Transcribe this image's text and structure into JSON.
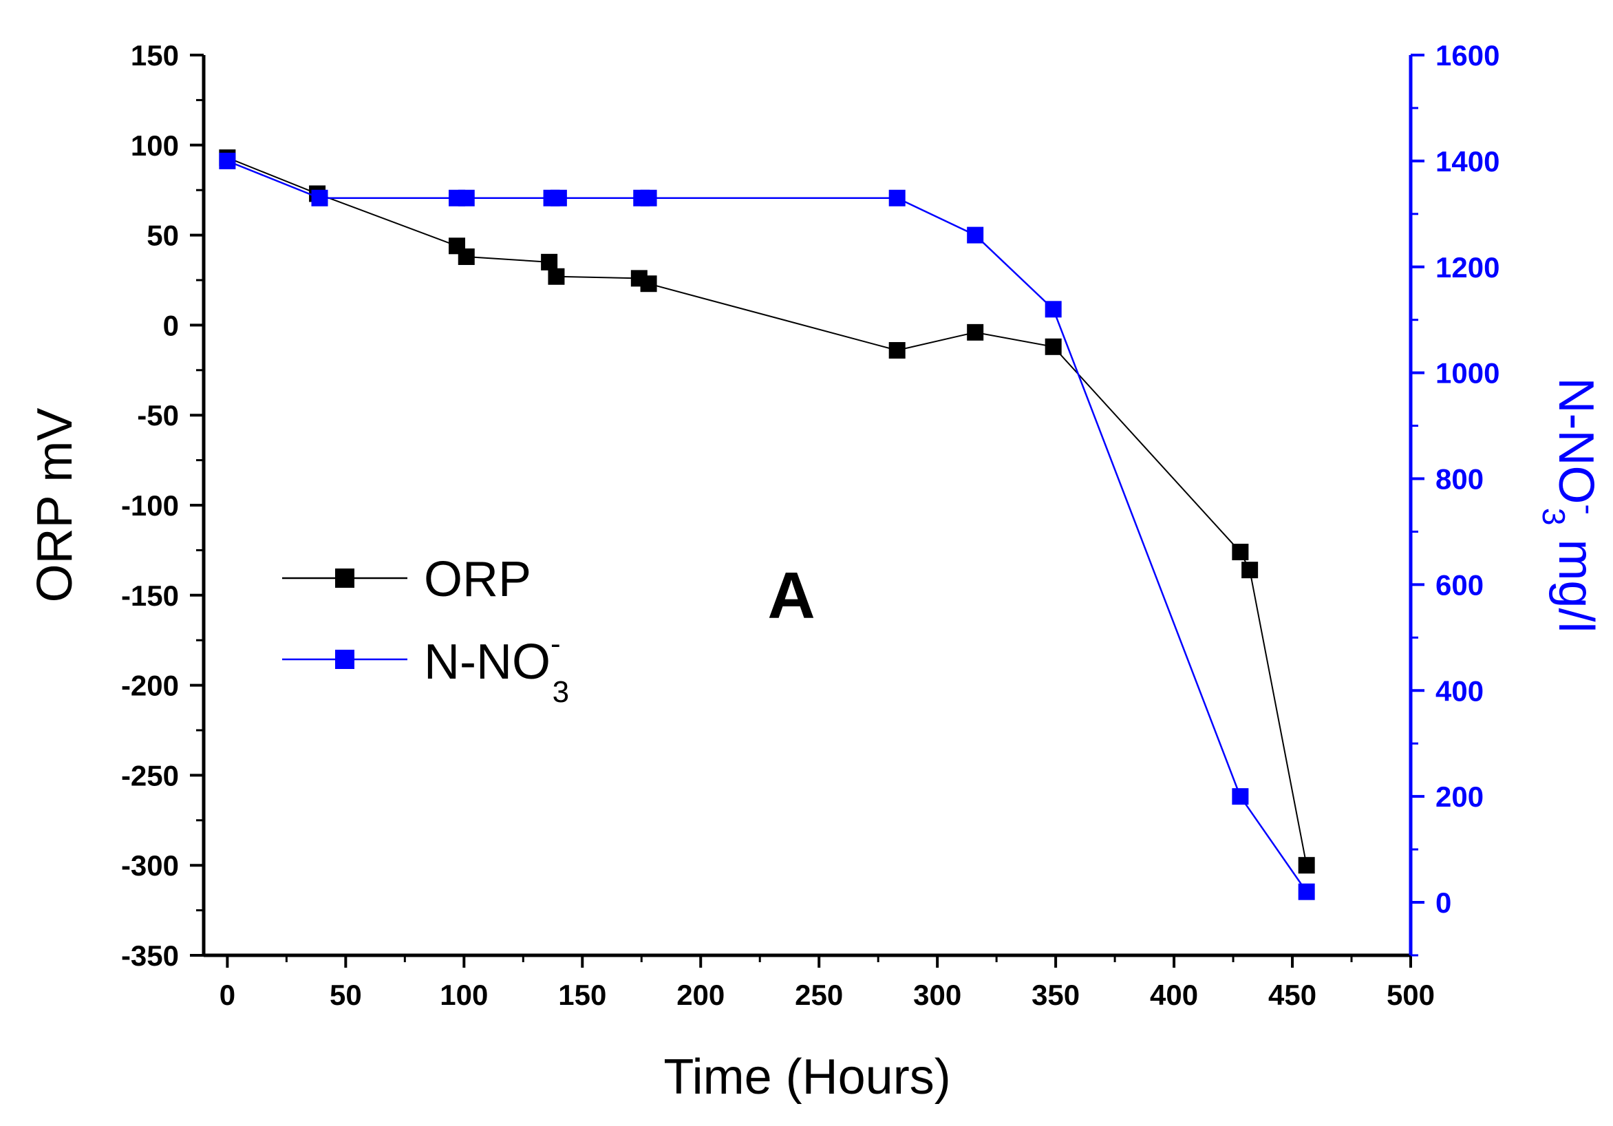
{
  "chart_data": {
    "type": "line",
    "panel_label": "A",
    "xlabel": "Time (Hours)",
    "ylabel_left": "ORP mV",
    "ylabel_right": {
      "main": "N-NO",
      "superscript": "-",
      "subscript": "3",
      "suffix": " mg/l"
    },
    "xlim": [
      -10,
      500
    ],
    "ylim_left": [
      -350,
      150
    ],
    "ylim_right": [
      -100,
      1600
    ],
    "x_ticks": [
      0,
      50,
      100,
      150,
      200,
      250,
      300,
      350,
      400,
      450,
      500
    ],
    "y_ticks_left": [
      150,
      100,
      50,
      0,
      -50,
      -100,
      -150,
      -200,
      -250,
      -300,
      -350
    ],
    "y_ticks_right": [
      1600,
      1400,
      1200,
      1000,
      800,
      600,
      400,
      200,
      0
    ],
    "x_tick_labels": [
      "0",
      "50",
      "100",
      "150",
      "200",
      "250",
      "300",
      "350",
      "400",
      "450",
      "500"
    ],
    "y_tick_labels_left": [
      "150",
      "100",
      "50",
      "0",
      "-50",
      "-100",
      "-150",
      "-200",
      "-250",
      "-300",
      "-350"
    ],
    "y_tick_labels_right": [
      "1600",
      "1400",
      "1200",
      "1000",
      "800",
      "600",
      "400",
      "200",
      "0"
    ],
    "legend_position": "middle-left",
    "series": [
      {
        "name": "ORP",
        "axis": "left",
        "color": "#000000",
        "x": [
          0,
          38,
          97,
          101,
          136,
          139,
          174,
          178,
          283,
          316,
          349,
          428,
          432,
          456
        ],
        "y": [
          93,
          73,
          44,
          38,
          35,
          27,
          26,
          23,
          -14,
          -4,
          -12,
          -126,
          -136,
          -300
        ]
      },
      {
        "name": "N-NO3-",
        "legend_main": "N-NO",
        "legend_sup": "-",
        "legend_sub": "3",
        "axis": "right",
        "color": "#0000ff",
        "x": [
          0,
          39,
          97,
          101,
          137,
          140,
          175,
          178,
          283,
          316,
          349,
          428,
          456
        ],
        "y": [
          1400,
          1330,
          1330,
          1330,
          1330,
          1330,
          1330,
          1330,
          1330,
          1260,
          1120,
          200,
          20
        ]
      }
    ]
  }
}
